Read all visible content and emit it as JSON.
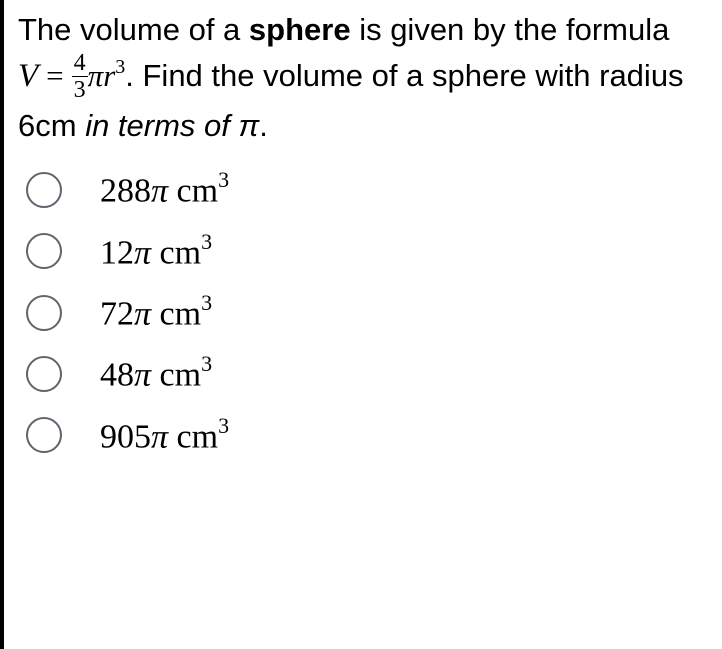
{
  "question": {
    "part1": "The volume of a ",
    "bold": "sphere",
    "part2": " is given by the formula ",
    "formula_V": "V",
    "formula_eq": "=",
    "formula_num": "4",
    "formula_den": "3",
    "formula_pi": "π",
    "formula_r": "r",
    "formula_exp": "3",
    "part3": ".  Find the volume of a sphere with radius 6cm ",
    "italic": "in terms of π",
    "part4": "."
  },
  "options": [
    {
      "coef": "288",
      "pi": "π",
      "unit": " cm",
      "exp": "3"
    },
    {
      "coef": "12",
      "pi": "π",
      "unit": " cm",
      "exp": "3"
    },
    {
      "coef": "72",
      "pi": "π",
      "unit": " cm",
      "exp": "3"
    },
    {
      "coef": "48",
      "pi": "π",
      "unit": " cm",
      "exp": "3"
    },
    {
      "coef": "905",
      "pi": "π",
      "unit": " cm",
      "exp": "3"
    }
  ],
  "style": {
    "text_color": "#000000",
    "background_color": "#ffffff",
    "radio_border_color": "#60646c",
    "left_border_color": "#000000",
    "question_fontsize": 31,
    "option_fontsize": 34,
    "sup_fontsize_q": 20,
    "sup_fontsize_opt": 22,
    "frac_fontsize": 24,
    "radio_diameter": 36
  }
}
